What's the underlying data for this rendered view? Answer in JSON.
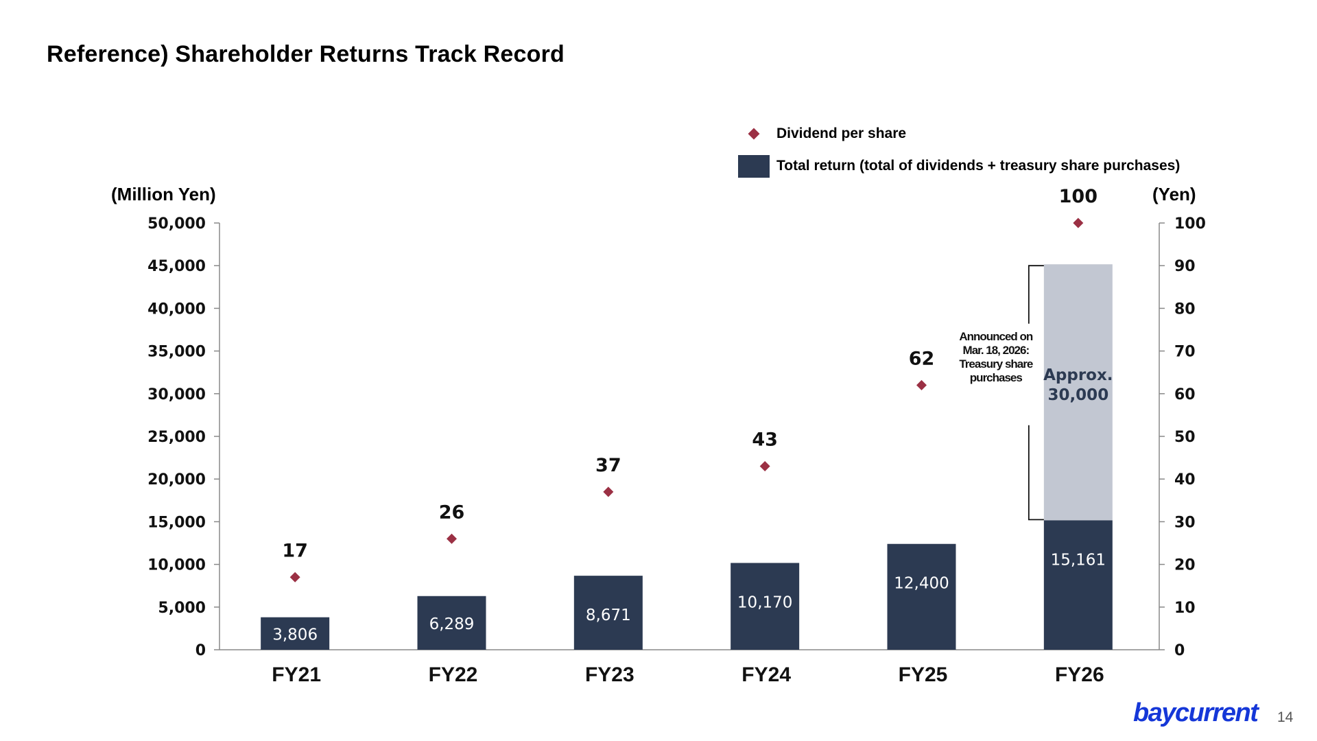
{
  "slide": {
    "title": "Reference) Shareholder Returns Track Record",
    "page_number": "14",
    "logo_text": "baycurrent"
  },
  "legend": {
    "dividend_label": "Dividend per share",
    "total_return_label": "Total return (total of dividends + treasury share purchases)"
  },
  "colors": {
    "bar": "#2c3a52",
    "planned_bar": "#c2c7d2",
    "dividend_marker": "#9b3044",
    "logo": "#1537d8"
  },
  "chart_data": {
    "type": "bar",
    "categories": [
      "FY21",
      "FY22",
      "FY23",
      "FY24",
      "FY25",
      "FY26"
    ],
    "series": [
      {
        "name": "Total return (total of dividends + treasury share purchases)",
        "axis": "left",
        "values": [
          3806,
          6289,
          8671,
          10170,
          12400,
          15161
        ],
        "labels": [
          "3,806",
          "6,289",
          "8,671",
          "10,170",
          "12,400",
          "15,161"
        ]
      },
      {
        "name": "Dividend per share",
        "axis": "right",
        "type": "scatter",
        "values": [
          17,
          26,
          37,
          43,
          62,
          100
        ],
        "labels": [
          "17",
          "26",
          "37",
          "43",
          "62",
          "100"
        ]
      }
    ],
    "planned_treasury_purchase": {
      "category": "FY26",
      "base": 15161,
      "value": 30000,
      "label_line1": "Approx.",
      "label_line2": "30,000",
      "annotation": [
        "Announced on",
        "Mar. 18, 2026:",
        "Treasury share",
        "purchases"
      ]
    },
    "ylabel_left": "(Million Yen)",
    "ylabel_right": "(Yen)",
    "ylim_left": [
      0,
      50000
    ],
    "ylim_right": [
      0,
      100
    ],
    "yticks_left": [
      "0",
      "5,000",
      "10,000",
      "15,000",
      "20,000",
      "25,000",
      "30,000",
      "35,000",
      "40,000",
      "45,000",
      "50,000"
    ],
    "yticks_right": [
      "0",
      "10",
      "20",
      "30",
      "40",
      "50",
      "60",
      "70",
      "80",
      "90",
      "100"
    ],
    "grid": false,
    "legend_position": "top-right"
  }
}
